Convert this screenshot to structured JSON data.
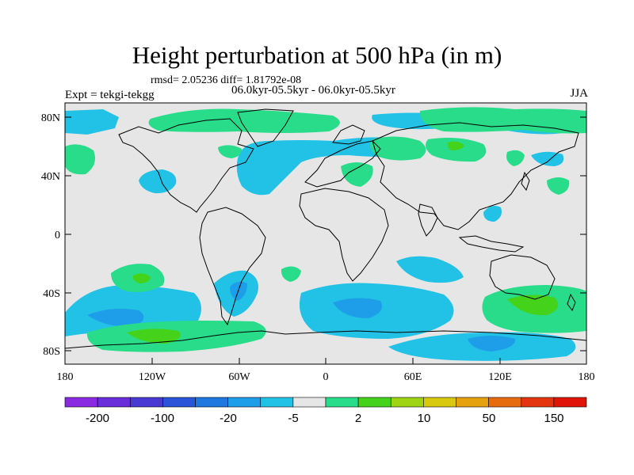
{
  "title": "Height perturbation at 500 hPa (in m)",
  "stats": "rmsd= 2.05236 diff= 1.81792e-08",
  "period": "06.0kyr-05.5kyr - 06.0kyr-05.5kyr",
  "experiment": "Expt = tekgi-tekgg",
  "season": "JJA",
  "map": {
    "background": "#e6e6e6",
    "lon_range": [
      -180,
      180
    ],
    "lat_range": [
      -90,
      90
    ],
    "lat_ticks": [
      "80N",
      "40N",
      "0",
      "40S",
      "80S"
    ],
    "lon_ticks": [
      "180",
      "120W",
      "60W",
      "0",
      "60E",
      "120E",
      "180"
    ]
  },
  "colorbar": {
    "colors": [
      "#8a2be2",
      "#6a2fd8",
      "#4a3ad4",
      "#2a55d8",
      "#1e78e0",
      "#1e9ee8",
      "#22c2e6",
      "#e6e6e6",
      "#28dc8a",
      "#44d21a",
      "#9ed414",
      "#d8c80e",
      "#e6a20e",
      "#e66a0e",
      "#e4360e",
      "#e01408"
    ],
    "labels": [
      "-200",
      "-100",
      "-20",
      "-5",
      "2",
      "10",
      "50",
      "150"
    ]
  }
}
